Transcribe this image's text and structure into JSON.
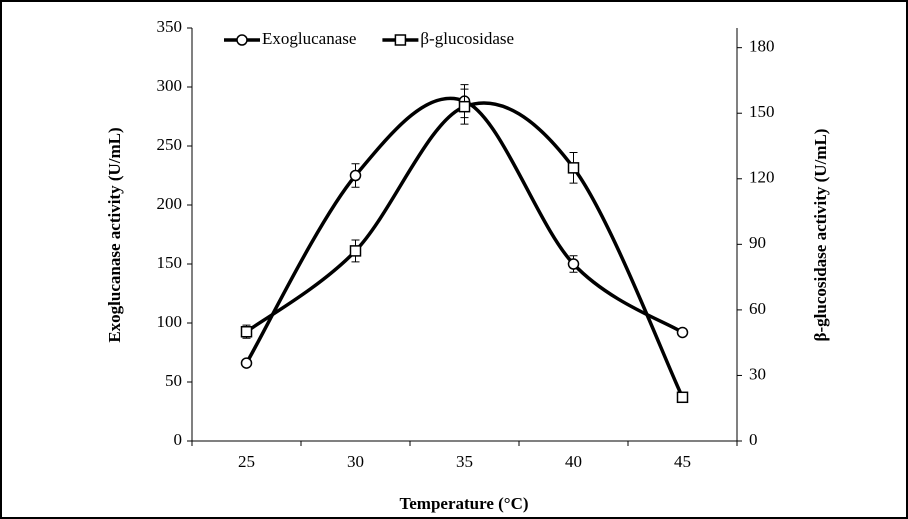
{
  "chart_data": {
    "type": "line",
    "x_label": "Temperature (°C)",
    "y_label": "Exoglucanase activity (U/mL)",
    "y2_label": "β-glucosidase activity (U/mL)",
    "categories": [
      "25",
      "30",
      "35",
      "40",
      "45"
    ],
    "ylim": [
      0,
      350
    ],
    "yticks": [
      0,
      50,
      100,
      150,
      200,
      250,
      300,
      350
    ],
    "y2lim": [
      0,
      189
    ],
    "y2ticks": [
      0,
      30,
      60,
      90,
      120,
      150,
      180
    ],
    "grid": false,
    "legend": "top-left",
    "smooth": true,
    "series": [
      {
        "name": "Exoglucanase",
        "color": "#000000",
        "marker": "circle",
        "values": [
          66,
          225,
          288,
          150,
          92
        ],
        "errors": [
          2,
          10,
          14,
          7,
          3
        ]
      },
      {
        "name": "β-glucosidase",
        "color": "#000000",
        "marker": "square",
        "axis": "y2",
        "values": [
          50,
          87,
          153,
          125,
          20
        ],
        "errors": [
          3,
          5,
          8,
          7,
          2
        ]
      }
    ]
  }
}
